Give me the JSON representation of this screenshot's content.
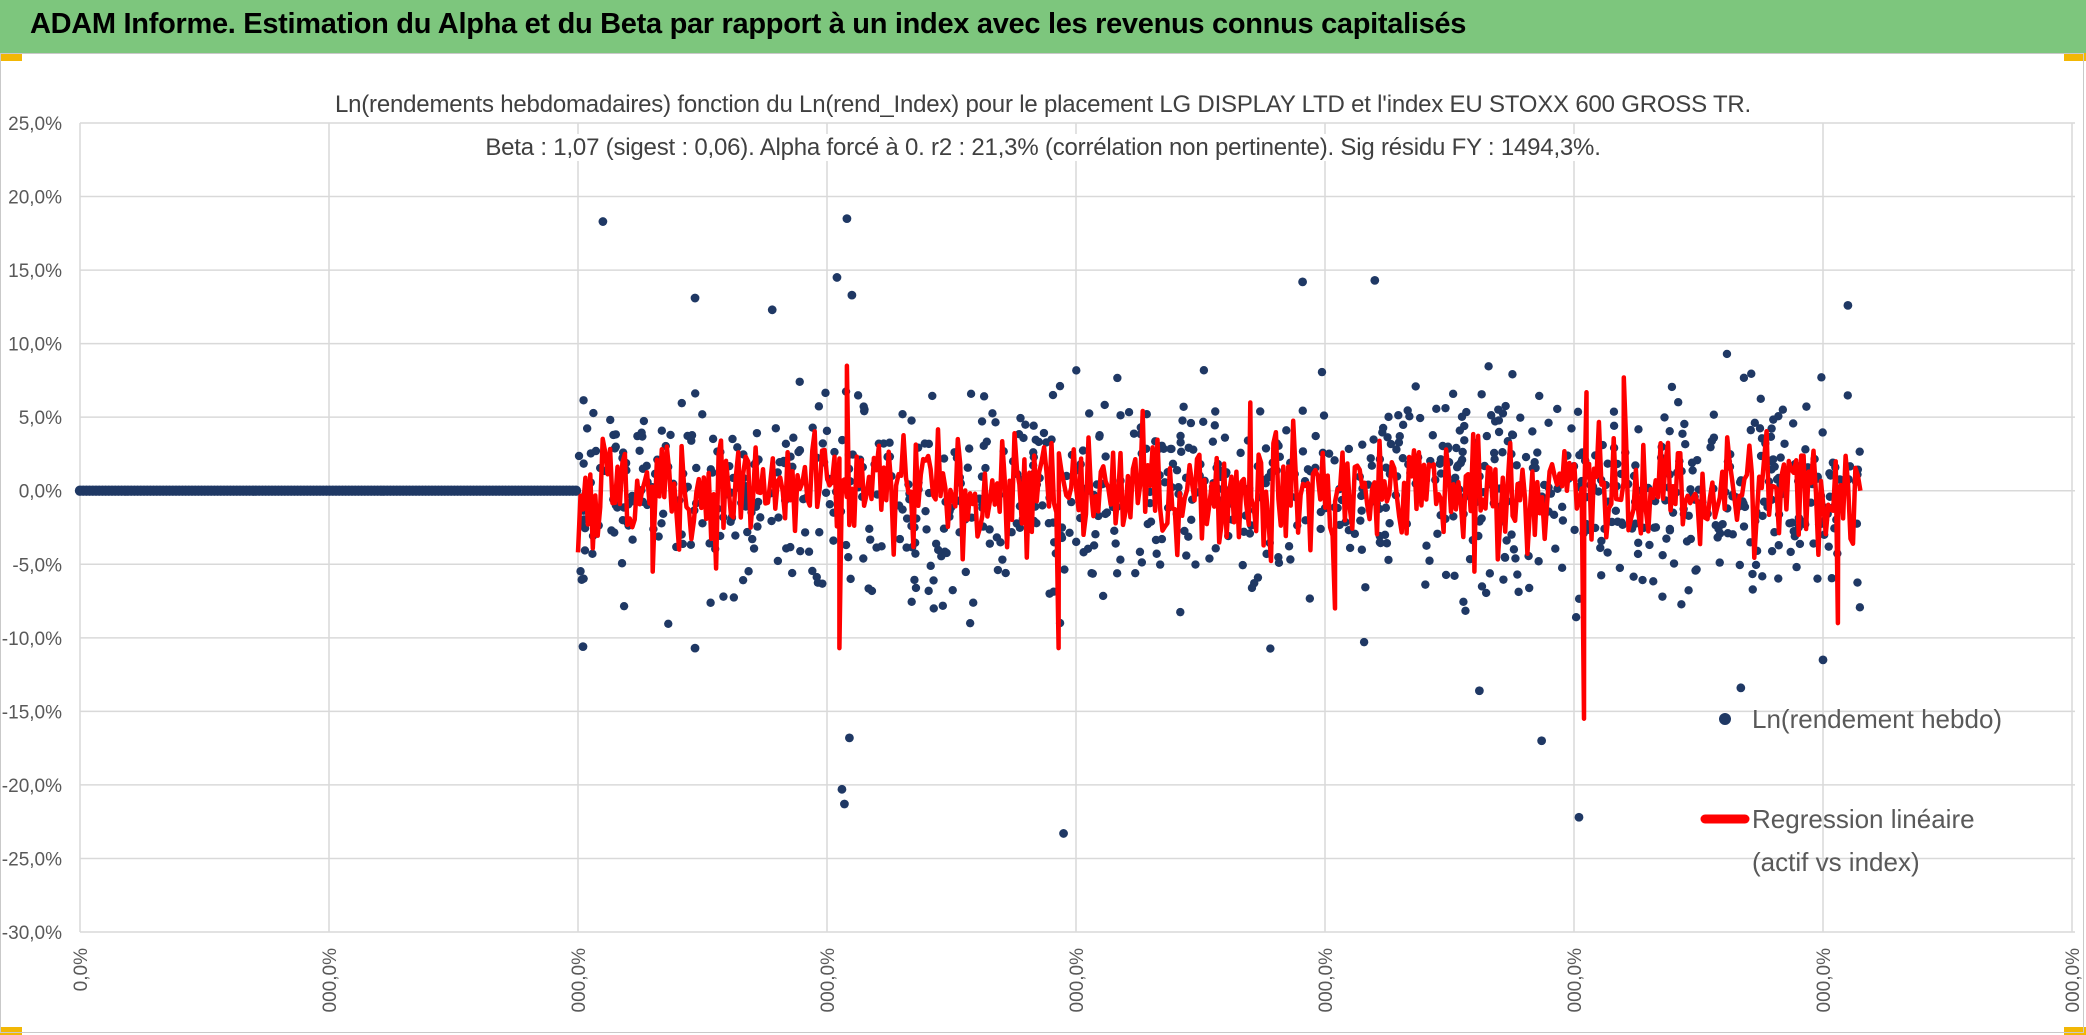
{
  "header": {
    "title": "ADAM Informe. Estimation du Alpha et du Beta par rapport à un index avec les revenus connus capitalisés"
  },
  "colors": {
    "banner": "#7dc67d",
    "corner": "#f2b705",
    "points": "#1f3864",
    "regression": "#ff0000",
    "grid": "#d9d9d9"
  },
  "chart_data": {
    "type": "scatter",
    "title": "Ln(rendements hebdomadaires) fonction du Ln(rend_Index) pour le placement LG DISPLAY LTD et l'index EU STOXX 600 GROSS TR.",
    "subtitle": "Beta : 1,07 (sigest : 0,06). Alpha forcé à 0. r2 : 21,3% (corrélation non pertinente). Sig résidu FY : 1494,3%.",
    "xlabel": "",
    "ylabel": "",
    "ylim": [
      -0.3,
      0.25
    ],
    "y_ticks": [
      "25,0%",
      "20,0%",
      "15,0%",
      "10,0%",
      "5,0%",
      "0,0%",
      "-5,0%",
      "-10,0%",
      "-15,0%",
      "-20,0%",
      "-25,0%",
      "-30,0%"
    ],
    "x_ticks": [
      "0,0%",
      "000,0%",
      "000,0%",
      "000,0%",
      "000,0%",
      "000,0%",
      "000,0%",
      "000,0%",
      "000,0%"
    ],
    "grid": true,
    "legend_position": "right",
    "series": [
      {
        "name": "Ln(rendement hebdo)",
        "style": "markers",
        "color": "#1f3864",
        "flat_segment": {
          "x_start": 0,
          "x_end": 2.0,
          "y": 0.0
        },
        "outliers": [
          {
            "x": 2.1,
            "y": 0.183
          },
          {
            "x": 3.04,
            "y": 0.145
          },
          {
            "x": 3.08,
            "y": 0.185
          },
          {
            "x": 3.1,
            "y": 0.133
          },
          {
            "x": 2.47,
            "y": 0.131
          },
          {
            "x": 2.78,
            "y": 0.123
          },
          {
            "x": 4.91,
            "y": 0.142
          },
          {
            "x": 5.2,
            "y": 0.143
          },
          {
            "x": 7.1,
            "y": 0.126
          },
          {
            "x": 3.06,
            "y": -0.203
          },
          {
            "x": 3.07,
            "y": -0.213
          },
          {
            "x": 3.09,
            "y": -0.168
          },
          {
            "x": 3.95,
            "y": -0.233
          },
          {
            "x": 6.02,
            "y": -0.222
          },
          {
            "x": 5.87,
            "y": -0.17
          },
          {
            "x": 5.62,
            "y": -0.136
          },
          {
            "x": 6.67,
            "y": -0.134
          },
          {
            "x": 7.0,
            "y": -0.115
          },
          {
            "x": 2.02,
            "y": -0.106
          },
          {
            "x": 2.47,
            "y": -0.107
          }
        ],
        "dense_band": {
          "x_start": 2.0,
          "x_end": 7.15,
          "y_sigma": 0.035
        }
      },
      {
        "name": "Regression linéaire (actif vs index)",
        "style": "line",
        "color": "#ff0000",
        "spikes": [
          {
            "x": 3.08,
            "y": 0.085
          },
          {
            "x": 3.05,
            "y": -0.107
          },
          {
            "x": 3.93,
            "y": -0.107
          },
          {
            "x": 5.04,
            "y": -0.08
          },
          {
            "x": 6.04,
            "y": -0.155
          },
          {
            "x": 6.05,
            "y": 0.067
          },
          {
            "x": 6.2,
            "y": 0.077
          },
          {
            "x": 7.06,
            "y": -0.09
          },
          {
            "x": 4.7,
            "y": 0.06
          },
          {
            "x": 2.3,
            "y": -0.055
          },
          {
            "x": 5.6,
            "y": -0.055
          }
        ],
        "band_sigma": 0.02
      }
    ]
  },
  "legend": {
    "items": [
      {
        "label_line1": "Ln(rendement hebdo)",
        "label_line2": ""
      },
      {
        "label_line1": "Regression linéaire",
        "label_line2": "(actif vs index)"
      }
    ]
  }
}
